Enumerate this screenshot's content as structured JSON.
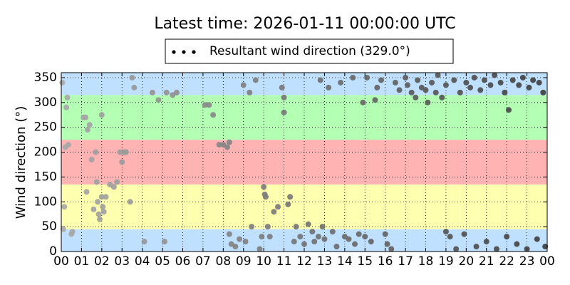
{
  "chart_data": {
    "type": "scatter",
    "title": "Latest time: 2026-01-11 00:00:00 UTC",
    "y_label": "Wind direction (°)",
    "xlim": [
      0,
      24
    ],
    "ylim": [
      0,
      360
    ],
    "xticks": [
      {
        "value": 0,
        "label": "00"
      },
      {
        "value": 1,
        "label": "01"
      },
      {
        "value": 2,
        "label": "02"
      },
      {
        "value": 3,
        "label": "03"
      },
      {
        "value": 4,
        "label": "04"
      },
      {
        "value": 5,
        "label": "05"
      },
      {
        "value": 6,
        "label": "06"
      },
      {
        "value": 7,
        "label": "07"
      },
      {
        "value": 8,
        "label": "08"
      },
      {
        "value": 9,
        "label": "09"
      },
      {
        "value": 10,
        "label": "10"
      },
      {
        "value": 11,
        "label": "11"
      },
      {
        "value": 12,
        "label": "12"
      },
      {
        "value": 13,
        "label": "13"
      },
      {
        "value": 14,
        "label": "14"
      },
      {
        "value": 15,
        "label": "15"
      },
      {
        "value": 16,
        "label": "16"
      },
      {
        "value": 17,
        "label": "17"
      },
      {
        "value": 18,
        "label": "18"
      },
      {
        "value": 19,
        "label": "19"
      },
      {
        "value": 20,
        "label": "20"
      },
      {
        "value": 21,
        "label": "21"
      },
      {
        "value": 22,
        "label": "22"
      },
      {
        "value": 23,
        "label": "23"
      },
      {
        "value": 24,
        "label": "00"
      }
    ],
    "yticks": [
      0,
      50,
      100,
      150,
      200,
      250,
      300,
      350
    ],
    "grid": true,
    "bands": [
      {
        "from": 0,
        "to": 45,
        "color": "#bfe0ff"
      },
      {
        "from": 45,
        "to": 135,
        "color": "#ffffb0"
      },
      {
        "from": 135,
        "to": 225,
        "color": "#ffb3b3"
      },
      {
        "from": 225,
        "to": 315,
        "color": "#b3ffb3"
      },
      {
        "from": 315,
        "to": 360,
        "color": "#bfe0ff"
      }
    ],
    "series": [
      {
        "name": "Resultant wind direction (329.0°)",
        "color": "#a8a8a8",
        "color_end": "#3c3c3c",
        "x": [
          0.05,
          0.1,
          0.15,
          0.2,
          0.25,
          0.3,
          0.35,
          0.5,
          0.55,
          1.1,
          1.2,
          1.25,
          1.3,
          1.4,
          1.5,
          1.6,
          1.7,
          1.75,
          1.8,
          1.85,
          1.9,
          2.0,
          2.0,
          2.05,
          2.1,
          2.2,
          2.4,
          2.6,
          2.75,
          2.9,
          3.0,
          3.1,
          3.2,
          3.4,
          3.5,
          3.6,
          4.1,
          4.5,
          4.8,
          5.1,
          5.2,
          5.5,
          5.7,
          7.1,
          7.3,
          7.5,
          7.8,
          8.0,
          8.2,
          8.3,
          8.3,
          8.4,
          8.6,
          8.8,
          9.0,
          9.1,
          9.3,
          9.4,
          9.6,
          9.8,
          9.9,
          10.0,
          10.05,
          10.1,
          10.2,
          10.3,
          10.5,
          10.7,
          10.9,
          11.0,
          11.0,
          11.2,
          11.3,
          11.5,
          11.6,
          11.8,
          12.0,
          12.2,
          12.4,
          12.5,
          12.7,
          12.8,
          12.9,
          13.0,
          13.2,
          13.4,
          13.6,
          13.8,
          14.0,
          14.2,
          14.4,
          14.5,
          14.7,
          14.9,
          15.0,
          15.1,
          15.3,
          15.5,
          15.6,
          15.8,
          16.0,
          16.1,
          16.3,
          16.5,
          16.7,
          17.0,
          17.1,
          17.3,
          17.5,
          17.6,
          17.8,
          18.0,
          18.1,
          18.3,
          18.5,
          18.6,
          18.8,
          19.0,
          19.0,
          19.2,
          19.4,
          19.5,
          19.7,
          19.9,
          20.0,
          20.2,
          20.4,
          20.5,
          20.7,
          20.9,
          21.0,
          21.2,
          21.4,
          21.5,
          21.7,
          21.9,
          22.0,
          22.1,
          22.3,
          22.5,
          22.6,
          22.8,
          23.0,
          23.1,
          23.3,
          23.5,
          23.6,
          23.8,
          23.9
        ],
        "values": [
          340,
          45,
          90,
          210,
          290,
          310,
          215,
          35,
          40,
          270,
          270,
          120,
          245,
          255,
          185,
          85,
          200,
          140,
          100,
          75,
          65,
          275,
          110,
          90,
          80,
          110,
          135,
          130,
          140,
          200,
          180,
          200,
          200,
          100,
          350,
          330,
          20,
          320,
          305,
          20,
          320,
          315,
          320,
          295,
          295,
          275,
          215,
          215,
          210,
          220,
          35,
          15,
          10,
          25,
          335,
          20,
          320,
          50,
          345,
          5,
          30,
          130,
          115,
          110,
          50,
          30,
          80,
          90,
          330,
          310,
          280,
          95,
          110,
          20,
          50,
          30,
          15,
          55,
          40,
          20,
          30,
          345,
          50,
          25,
          330,
          40,
          10,
          340,
          30,
          25,
          350,
          15,
          35,
          300,
          30,
          350,
          20,
          305,
          330,
          345,
          35,
          15,
          5,
          340,
          325,
          350,
          335,
          320,
          310,
          345,
          330,
          325,
          300,
          340,
          320,
          355,
          310,
          335,
          40,
          30,
          345,
          5,
          320,
          35,
          340,
          330,
          350,
          10,
          325,
          345,
          20,
          335,
          355,
          5,
          340,
          320,
          30,
          285,
          345,
          15,
          335,
          350,
          5,
          330,
          345,
          25,
          340,
          320,
          10
        ]
      }
    ]
  }
}
